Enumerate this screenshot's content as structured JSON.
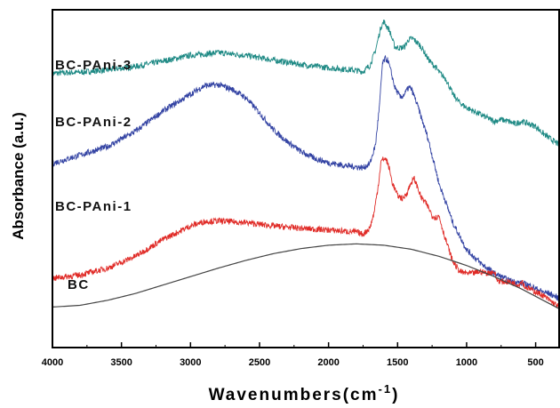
{
  "chart_data": {
    "type": "line",
    "xlabel": "Wavenumbers(cm",
    "xlabel_sup": "-1",
    "xlabel_close": ")",
    "ylabel": "Absorbance (a.u.)",
    "xlim": [
      4000,
      330
    ],
    "x_reversed": true,
    "ylim": [
      0,
      100
    ],
    "grid": false,
    "legend": "none",
    "x_ticks": [
      4000,
      3500,
      3000,
      2500,
      2000,
      1500,
      1000,
      500
    ],
    "series": [
      {
        "name": "BC-PAni-3",
        "color": "#1f8a85",
        "noise": 0.9,
        "points": [
          [
            4000,
            81.2
          ],
          [
            3800,
            81.5
          ],
          [
            3600,
            82.2
          ],
          [
            3400,
            83.2
          ],
          [
            3200,
            84.8
          ],
          [
            3000,
            86.5
          ],
          [
            2800,
            87.3
          ],
          [
            2600,
            86.5
          ],
          [
            2400,
            85.1
          ],
          [
            2200,
            83.8
          ],
          [
            2000,
            82.8
          ],
          [
            1850,
            82.3
          ],
          [
            1750,
            81.7
          ],
          [
            1700,
            83.5
          ],
          [
            1660,
            88
          ],
          [
            1620,
            95
          ],
          [
            1600,
            96.5
          ],
          [
            1560,
            94
          ],
          [
            1520,
            89
          ],
          [
            1480,
            88.7
          ],
          [
            1450,
            89
          ],
          [
            1420,
            91.2
          ],
          [
            1390,
            91.5
          ],
          [
            1350,
            90
          ],
          [
            1320,
            88.5
          ],
          [
            1280,
            85.5
          ],
          [
            1250,
            84
          ],
          [
            1220,
            82.8
          ],
          [
            1200,
            81.5
          ],
          [
            1150,
            79.5
          ],
          [
            1100,
            75
          ],
          [
            1050,
            72.5
          ],
          [
            1000,
            71
          ],
          [
            950,
            70
          ],
          [
            900,
            69
          ],
          [
            850,
            68
          ],
          [
            800,
            67
          ],
          [
            750,
            67.5
          ],
          [
            700,
            67
          ],
          [
            650,
            66.2
          ],
          [
            600,
            67
          ],
          [
            550,
            66.2
          ],
          [
            500,
            65.5
          ],
          [
            450,
            63.5
          ],
          [
            400,
            62
          ],
          [
            330,
            60
          ]
        ]
      },
      {
        "name": "BC-PAni-2",
        "color": "#3343a3",
        "noise": 0.9,
        "points": [
          [
            4000,
            54.5
          ],
          [
            3800,
            57
          ],
          [
            3600,
            59.5
          ],
          [
            3400,
            64
          ],
          [
            3200,
            70
          ],
          [
            3000,
            75
          ],
          [
            2900,
            77.5
          ],
          [
            2800,
            77.8
          ],
          [
            2700,
            76.5
          ],
          [
            2600,
            74
          ],
          [
            2500,
            69.5
          ],
          [
            2400,
            64.5
          ],
          [
            2300,
            61
          ],
          [
            2200,
            58
          ],
          [
            2100,
            56
          ],
          [
            2000,
            54.7
          ],
          [
            1900,
            54
          ],
          [
            1800,
            53.5
          ],
          [
            1750,
            53.2
          ],
          [
            1700,
            54.5
          ],
          [
            1660,
            60
          ],
          [
            1630,
            72
          ],
          [
            1610,
            84
          ],
          [
            1590,
            85.5
          ],
          [
            1570,
            85
          ],
          [
            1550,
            82
          ],
          [
            1520,
            77
          ],
          [
            1480,
            74
          ],
          [
            1450,
            75
          ],
          [
            1420,
            77
          ],
          [
            1400,
            76.5
          ],
          [
            1380,
            74.5
          ],
          [
            1350,
            71
          ],
          [
            1320,
            67
          ],
          [
            1280,
            62
          ],
          [
            1250,
            57
          ],
          [
            1220,
            52
          ],
          [
            1200,
            48.5
          ],
          [
            1150,
            43
          ],
          [
            1100,
            37
          ],
          [
            1050,
            33
          ],
          [
            1000,
            29
          ],
          [
            950,
            27
          ],
          [
            900,
            25
          ],
          [
            850,
            23.5
          ],
          [
            800,
            22
          ],
          [
            750,
            21
          ],
          [
            700,
            20
          ],
          [
            650,
            19.5
          ],
          [
            600,
            19
          ],
          [
            550,
            18.5
          ],
          [
            500,
            17.5
          ],
          [
            450,
            16.5
          ],
          [
            400,
            16
          ],
          [
            330,
            14.5
          ]
        ]
      },
      {
        "name": "BC-PAni-1",
        "color": "#e02b27",
        "noise": 0.9,
        "points": [
          [
            4000,
            20.5
          ],
          [
            3800,
            21.5
          ],
          [
            3600,
            23.5
          ],
          [
            3400,
            27
          ],
          [
            3200,
            32
          ],
          [
            3000,
            36
          ],
          [
            2900,
            37.3
          ],
          [
            2800,
            37.5
          ],
          [
            2600,
            37
          ],
          [
            2400,
            36
          ],
          [
            2200,
            35.3
          ],
          [
            2000,
            34.8
          ],
          [
            1800,
            34.2
          ],
          [
            1750,
            33.5
          ],
          [
            1700,
            35.5
          ],
          [
            1670,
            40
          ],
          [
            1640,
            48
          ],
          [
            1620,
            55
          ],
          [
            1600,
            56
          ],
          [
            1580,
            55.5
          ],
          [
            1560,
            53
          ],
          [
            1540,
            49
          ],
          [
            1500,
            45
          ],
          [
            1460,
            44
          ],
          [
            1430,
            46
          ],
          [
            1400,
            49
          ],
          [
            1380,
            50
          ],
          [
            1360,
            48
          ],
          [
            1330,
            44.5
          ],
          [
            1300,
            43
          ],
          [
            1270,
            41
          ],
          [
            1250,
            39
          ],
          [
            1220,
            38.5
          ],
          [
            1200,
            39
          ],
          [
            1180,
            36
          ],
          [
            1160,
            33
          ],
          [
            1120,
            28
          ],
          [
            1100,
            25.5
          ],
          [
            1050,
            22.5
          ],
          [
            1000,
            22
          ],
          [
            950,
            22
          ],
          [
            900,
            22.5
          ],
          [
            850,
            22
          ],
          [
            800,
            22.5
          ],
          [
            780,
            20
          ],
          [
            750,
            19.5
          ],
          [
            700,
            19.5
          ],
          [
            650,
            19
          ],
          [
            620,
            18.5
          ],
          [
            600,
            20
          ],
          [
            580,
            18
          ],
          [
            550,
            17.5
          ],
          [
            500,
            16.5
          ],
          [
            450,
            15.5
          ],
          [
            400,
            14
          ],
          [
            330,
            12
          ]
        ]
      },
      {
        "name": "BC",
        "color": "#444444",
        "noise": 0,
        "points": [
          [
            4000,
            12
          ],
          [
            3800,
            12.5
          ],
          [
            3600,
            14
          ],
          [
            3400,
            16
          ],
          [
            3200,
            18.5
          ],
          [
            3000,
            21
          ],
          [
            2800,
            23.5
          ],
          [
            2600,
            25.8
          ],
          [
            2400,
            27.8
          ],
          [
            2200,
            29.3
          ],
          [
            2000,
            30.3
          ],
          [
            1800,
            30.7
          ],
          [
            1600,
            30.3
          ],
          [
            1400,
            29.1
          ],
          [
            1200,
            27
          ],
          [
            1000,
            24.3
          ],
          [
            800,
            21
          ],
          [
            600,
            17.3
          ],
          [
            400,
            13
          ],
          [
            330,
            11.5
          ]
        ]
      }
    ]
  }
}
